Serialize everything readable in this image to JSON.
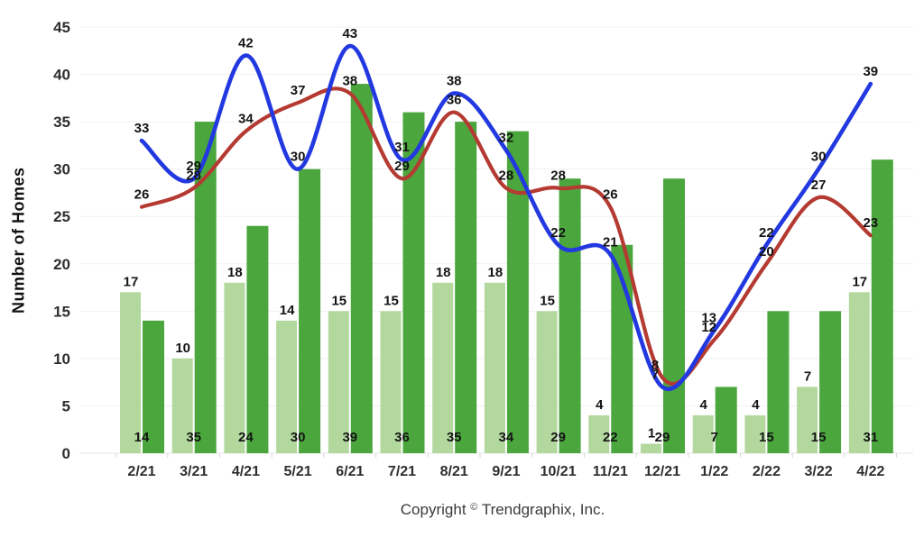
{
  "chart_data": {
    "type": "bar+line",
    "title": "",
    "ylabel": "Number of Homes",
    "xlabel": "",
    "ylim": [
      0,
      45
    ],
    "ytick_step": 5,
    "yticks": [
      0,
      5,
      10,
      15,
      20,
      25,
      30,
      35,
      40,
      45
    ],
    "grid": true,
    "legend": "none",
    "categories": [
      "2/21",
      "3/21",
      "4/21",
      "5/21",
      "6/21",
      "7/21",
      "8/21",
      "9/21",
      "10/21",
      "11/21",
      "12/21",
      "1/22",
      "2/22",
      "3/22",
      "4/22"
    ],
    "series": [
      {
        "name": "light_green_bars",
        "type": "bar",
        "color": "#b2d89e",
        "values": [
          17,
          10,
          18,
          14,
          15,
          15,
          18,
          18,
          15,
          4,
          1,
          4,
          4,
          7,
          17
        ],
        "label_position": "above bar"
      },
      {
        "name": "dark_green_bars",
        "type": "bar",
        "color": "#4aa63d",
        "values": [
          14,
          35,
          24,
          30,
          39,
          36,
          35,
          34,
          29,
          22,
          29,
          7,
          15,
          15,
          31
        ],
        "label_position": "inside bar bottom"
      },
      {
        "name": "red_line",
        "type": "line",
        "color": "#b43a32",
        "values": [
          26,
          28,
          34,
          37,
          38,
          29,
          36,
          28,
          28,
          26,
          8,
          12,
          20,
          27,
          23
        ]
      },
      {
        "name": "blue_line",
        "type": "line",
        "color": "#2238e0",
        "values": [
          33,
          29,
          42,
          30,
          43,
          31,
          38,
          32,
          22,
          21,
          7,
          13,
          22,
          30,
          39
        ]
      }
    ]
  },
  "footer": {
    "prefix": "Copyright",
    "symbol": "©",
    "suffix": "Trendgraphix, Inc."
  },
  "colors": {
    "background": "#ffffff",
    "gridline": "#f1f1f1",
    "baseline": "#e5e5e5",
    "tick_mark": "#d7d7d7",
    "axis_text": "#2e2e2e",
    "value_text": "#141414"
  }
}
